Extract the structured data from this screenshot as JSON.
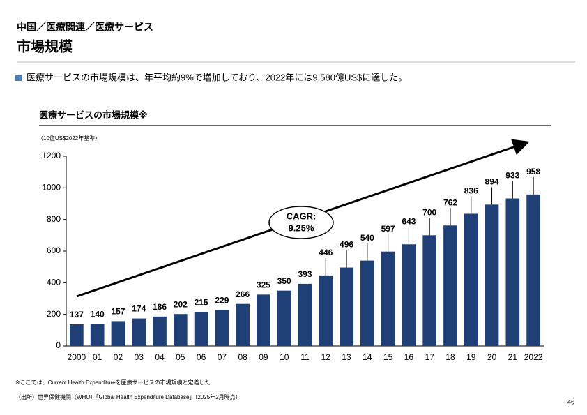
{
  "header": {
    "breadcrumb": "中国／医療関連／医療サービス",
    "title": "市場規模"
  },
  "bullet": "医療サービスの市場規模は、年平均約9%で増加しており、2022年には9,580億US$に達した。",
  "chart_data": {
    "type": "bar",
    "title": "医療サービスの市場規模※",
    "unit_label": "（10億US$2022年基準）",
    "categories": [
      "2000",
      "01",
      "02",
      "03",
      "04",
      "05",
      "06",
      "07",
      "08",
      "09",
      "10",
      "11",
      "12",
      "13",
      "14",
      "15",
      "16",
      "17",
      "18",
      "19",
      "20",
      "21",
      "2022"
    ],
    "values": [
      137,
      140,
      157,
      174,
      186,
      202,
      215,
      229,
      266,
      325,
      350,
      393,
      446,
      496,
      540,
      597,
      643,
      700,
      762,
      836,
      894,
      933,
      958
    ],
    "color": "#1f4077",
    "ylim": [
      0,
      1200
    ],
    "yticks": [
      0,
      200,
      400,
      600,
      800,
      1000,
      1200
    ],
    "annotation": [
      "CAGR:",
      "9.25%"
    ]
  },
  "footnotes": [
    "※ここでは、Current Health Expenditureを医療サービスの市場規模と定義した",
    "（出所）世界保健機関（WHO）「Global Health Expenditure Database」（2025年2月時点）"
  ],
  "page_number": "46"
}
